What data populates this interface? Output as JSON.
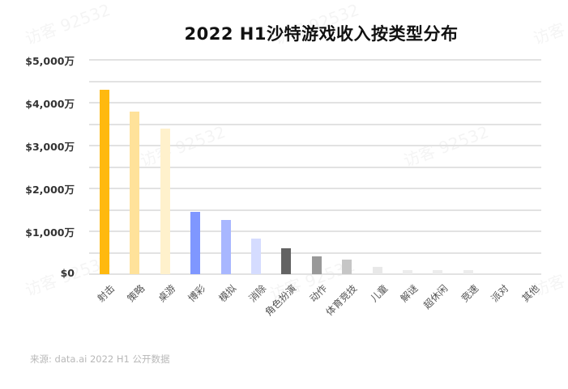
{
  "title": "2022 H1沙特游戏收入按类型分布",
  "source": "来源: data.ai 2022 H1 公开数据",
  "watermark": "访客 92532",
  "y_ticks": [
    "$5,000万",
    "$4,000万",
    "$3,000万",
    "$2,000万",
    "$1,000万",
    "$0"
  ],
  "chart_data": {
    "type": "bar",
    "title": "2022 H1沙特游戏收入按类型分布",
    "xlabel": "",
    "ylabel": "",
    "ylim": [
      0,
      5000
    ],
    "y_unit": "$万",
    "y_tick_labels": [
      "$0",
      "$1,000万",
      "$2,000万",
      "$3,000万",
      "$4,000万",
      "$5,000万"
    ],
    "grid": true,
    "legend": "none",
    "categories": [
      "射击",
      "策略",
      "桌游",
      "博彩",
      "模拟",
      "消除",
      "角色扮演",
      "动作",
      "体育竞技",
      "儿童",
      "解谜",
      "超休闲",
      "竞速",
      "派对",
      "其他"
    ],
    "values": [
      4300,
      3800,
      3400,
      1450,
      1260,
      830,
      600,
      420,
      340,
      170,
      100,
      100,
      100,
      0,
      0
    ],
    "colors": [
      "#ffb90f",
      "#ffe29a",
      "#fff1cc",
      "#7f97ff",
      "#a8b7ff",
      "#d5dcff",
      "#636363",
      "#999999",
      "#c6c6c6",
      "#e8e8e8",
      "#ececec",
      "#ececec",
      "#ececec",
      "#f0f0f0",
      "#f0f0f0"
    ],
    "source": "来源: data.ai 2022 H1 公开数据"
  }
}
